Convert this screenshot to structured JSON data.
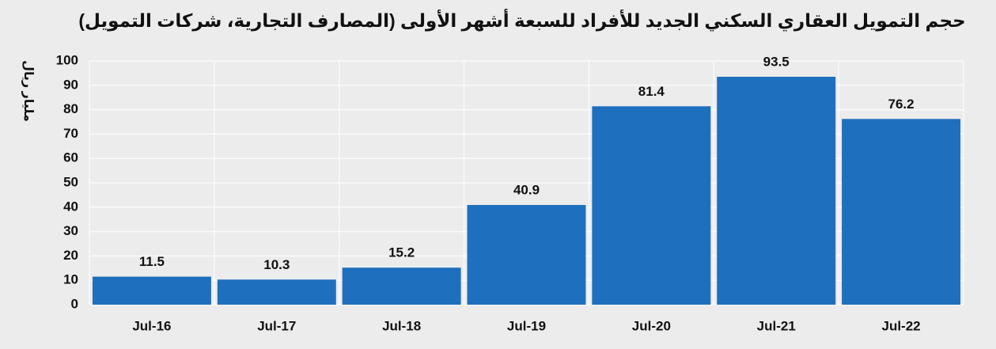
{
  "chart_data": {
    "type": "bar",
    "title": "حجم التمويل العقاري السكني الجديد للأفراد للسبعة أشهر الأولى (المصارف التجارية، شركات التمويل)",
    "y_label": "مليار ريال",
    "categories": [
      "Jul-16",
      "Jul-17",
      "Jul-18",
      "Jul-19",
      "Jul-20",
      "Jul-21",
      "Jul-22"
    ],
    "values": [
      11.5,
      10.3,
      15.2,
      40.9,
      81.4,
      93.5,
      76.2
    ],
    "color": "#1f6fbf",
    "ylim": [
      0,
      100
    ],
    "yticks": [
      0,
      10,
      20,
      30,
      40,
      50,
      60,
      70,
      80,
      90,
      100
    ],
    "grid": true,
    "data_labels": true
  }
}
